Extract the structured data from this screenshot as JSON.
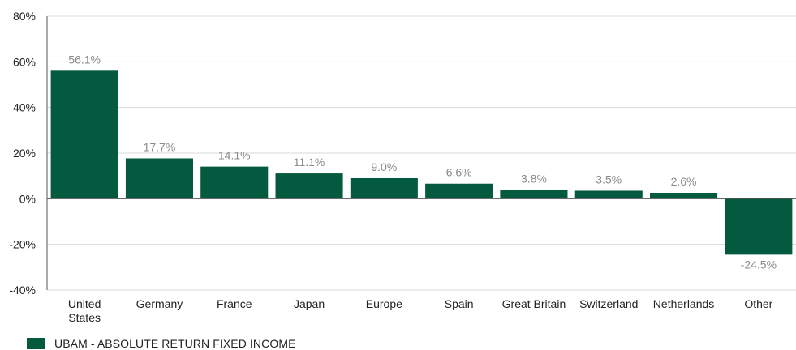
{
  "chart_data": {
    "type": "bar",
    "categories": [
      [
        "United",
        "States"
      ],
      [
        "Germany"
      ],
      [
        "France"
      ],
      [
        "Japan"
      ],
      [
        "Europe"
      ],
      [
        "Spain"
      ],
      [
        "Great Britain"
      ],
      [
        "Switzerland"
      ],
      [
        "Netherlands"
      ],
      [
        "Other"
      ]
    ],
    "series": [
      {
        "name": "UBAM - ABSOLUTE RETURN FIXED INCOME",
        "values": [
          56.1,
          17.7,
          14.1,
          11.1,
          9.0,
          6.6,
          3.8,
          3.5,
          2.6,
          -24.5
        ],
        "labels": [
          "56.1%",
          "17.7%",
          "14.1%",
          "11.1%",
          "9.0%",
          "6.6%",
          "3.8%",
          "3.5%",
          "2.6%",
          "-24.5%"
        ],
        "color": "#035a3e"
      }
    ],
    "ylim": [
      -40,
      80
    ],
    "yticks": [
      -40,
      -20,
      0,
      20,
      40,
      60,
      80
    ],
    "ytick_labels": [
      "-40%",
      "-20%",
      "0%",
      "20%",
      "40%",
      "60%",
      "80%"
    ],
    "grid": true,
    "legend_position": "bottom-left",
    "title": "",
    "xlabel": "",
    "ylabel": ""
  },
  "legend": {
    "label": "UBAM - ABSOLUTE RETURN FIXED INCOME"
  },
  "colors": {
    "bar": "#035a3e",
    "grid": "#d9d9d9",
    "axis": "#555555",
    "data_label": "#8a8a8a"
  }
}
